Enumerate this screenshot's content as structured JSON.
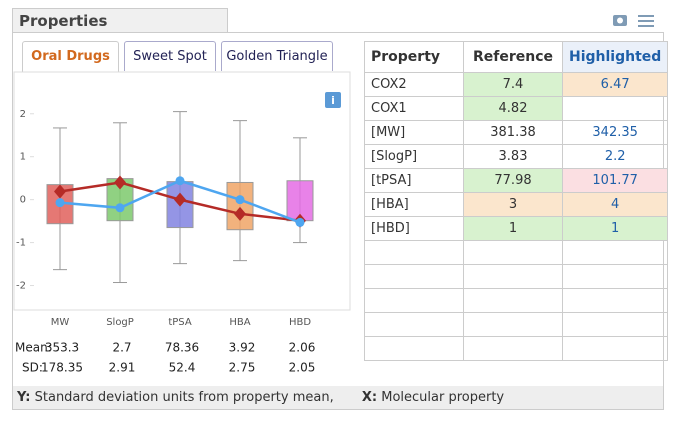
{
  "header": {
    "title": "Properties"
  },
  "tabs": {
    "labels": [
      "Oral Drugs",
      "Sweet Spot",
      "Golden Triangle"
    ],
    "active": 0
  },
  "chart_data": {
    "type": "box",
    "categories": [
      "MW",
      "SlogP",
      "tPSA",
      "HBA",
      "HBD"
    ],
    "boxes": [
      {
        "low": -1.63,
        "q1": -0.56,
        "q3": 0.35,
        "high": 1.67,
        "color": "#e0605c"
      },
      {
        "low": -1.93,
        "q1": -0.49,
        "q3": 0.49,
        "high": 1.79,
        "color": "#7cc96c"
      },
      {
        "low": -1.49,
        "q1": -0.65,
        "q3": 0.42,
        "high": 2.05,
        "color": "#8183e0"
      },
      {
        "low": -1.42,
        "q1": -0.7,
        "q3": 0.4,
        "high": 1.84,
        "color": "#f0a466"
      },
      {
        "low": -1.0,
        "q1": -0.49,
        "q3": 0.44,
        "high": 1.44,
        "color": "#e46ce4"
      }
    ],
    "series": [
      {
        "color": "#b52b27",
        "marker": "diamond",
        "values": [
          0.19,
          0.4,
          0.0,
          -0.33,
          -0.49
        ]
      },
      {
        "color": "#4ea6f0",
        "marker": "circle",
        "values": [
          -0.07,
          -0.19,
          0.44,
          0.0,
          -0.53
        ]
      }
    ],
    "ylim": [
      -2.5,
      2.6
    ],
    "yticks": [
      -2,
      -1,
      0,
      1,
      2
    ]
  },
  "stats": {
    "mean_label": "Mean:",
    "sd_label": "SD:",
    "mean": [
      353.3,
      2.7,
      78.36,
      3.92,
      2.06
    ],
    "sd": [
      178.35,
      2.91,
      52.4,
      2.75,
      2.05
    ]
  },
  "table": {
    "header": [
      "Property",
      "Reference",
      "Highlighted"
    ],
    "rows": [
      [
        "COX2",
        7.4,
        6.47
      ],
      [
        "COX1",
        4.82,
        null
      ],
      [
        "[MW]",
        381.38,
        342.35
      ],
      [
        "[SlogP]",
        3.83,
        2.2
      ],
      [
        "[tPSA]",
        77.98,
        101.77
      ],
      [
        "[HBA]",
        3,
        4
      ],
      [
        "[HBD]",
        1,
        1
      ]
    ],
    "cell_colors": [
      [
        null,
        "#d8f2cf",
        "#fbe6cd"
      ],
      [
        null,
        "#d8f2cf",
        null
      ],
      [
        null,
        null,
        null
      ],
      [
        null,
        null,
        null
      ],
      [
        null,
        "#d8f2cf",
        "#fbdfe2"
      ],
      [
        null,
        "#fbe6cd",
        "#fbe6cd"
      ],
      [
        null,
        "#d8f2cf",
        "#d8f2cf"
      ]
    ]
  },
  "footer": {
    "y_key": "Y:",
    "y_text": "Standard deviation units from property mean,",
    "x_key": "X:",
    "x_text": "Molecular property"
  }
}
